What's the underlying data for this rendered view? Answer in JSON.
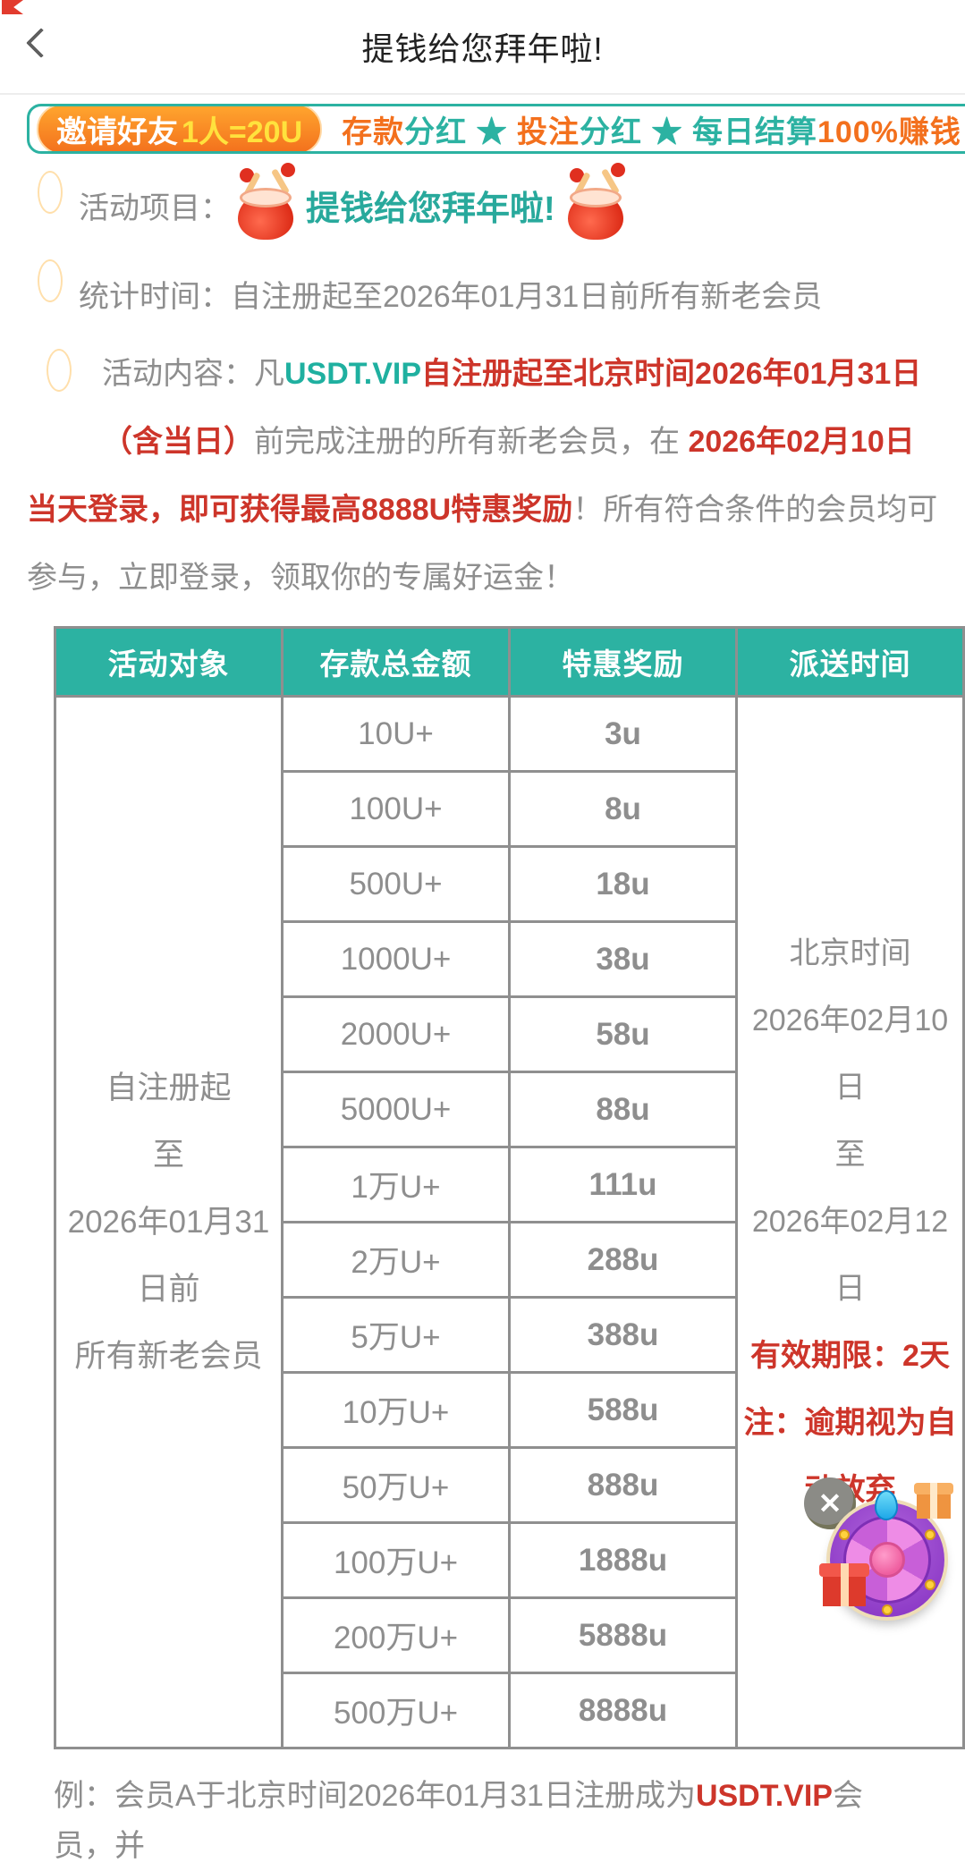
{
  "colors": {
    "teal": "#2cb2a2",
    "orange": "#f3701d",
    "red": "#cd352a",
    "reward_red": "#d2453c",
    "grey": "#8e8e8e",
    "yellow": "#ffe23d"
  },
  "header": {
    "title": "提钱给您拜年啦!"
  },
  "banner": {
    "pill_prefix": "邀请好友",
    "pill_highlight": "1人=20U",
    "segments": [
      {
        "t": "存款",
        "c": "orange"
      },
      {
        "t": "分红",
        "c": "teal"
      },
      {
        "t": " ★ ",
        "c": "teal"
      },
      {
        "t": "投注",
        "c": "orange"
      },
      {
        "t": "分红",
        "c": "teal"
      },
      {
        "t": " ★ ",
        "c": "teal"
      },
      {
        "t": "每日结算",
        "c": "teal"
      },
      {
        "t": "100%赚钱",
        "c": "orange"
      }
    ]
  },
  "rows": {
    "project_label": "活动项目：",
    "project_value": "提钱给您拜年啦!",
    "stats_label": "统计时间：",
    "stats_value": "自注册起至2026年01月31日前所有新老会员",
    "content_label": "活动内容："
  },
  "content_segments": [
    {
      "t": "凡",
      "c": "grey"
    },
    {
      "t": "USDT.VIP",
      "c": "tealb"
    },
    {
      "t": "自注册起至北京时间2026年01月31日（含当日）",
      "c": "red"
    },
    {
      "t": "前完成注册的所有新老会员，在 ",
      "c": "grey"
    },
    {
      "t": "2026年02月10日当天登录，即可获得最高8888U特惠奖励",
      "c": "red"
    },
    {
      "t": "！所有符合条件的会员均可参与，立即登录，领取你的专属好运金！",
      "c": "grey"
    }
  ],
  "table": {
    "headers": [
      "活动对象",
      "存款总金额",
      "特惠奖励",
      "派送时间"
    ],
    "target_lines": [
      "自注册起",
      "至",
      "2026年01月31",
      "日前",
      "所有新老会员"
    ],
    "rows": [
      [
        "10U+",
        "3u"
      ],
      [
        "100U+",
        "8u"
      ],
      [
        "500U+",
        "18u"
      ],
      [
        "1000U+",
        "38u"
      ],
      [
        "2000U+",
        "58u"
      ],
      [
        "5000U+",
        "88u"
      ],
      [
        "1万U+",
        "111u"
      ],
      [
        "2万U+",
        "288u"
      ],
      [
        "5万U+",
        "388u"
      ],
      [
        "10万U+",
        "588u"
      ],
      [
        "50万U+",
        "888u"
      ],
      [
        "100万U+",
        "1888u"
      ],
      [
        "200万U+",
        "5888u"
      ],
      [
        "500万U+",
        "8888u"
      ]
    ],
    "delivery_grey_lines": [
      "北京时间",
      "2026年02月10",
      "日",
      "至",
      "2026年02月12",
      "日"
    ],
    "delivery_red_lines": [
      "有效期限：2天",
      "注：逾期视为自动放弃"
    ]
  },
  "example_segments": [
    {
      "t": "例：会员A于北京时间2026年01月31日注册成为",
      "c": "grey"
    },
    {
      "t": "USDT.VIP",
      "c": "redb"
    },
    {
      "t": "会员，并",
      "c": "grey"
    }
  ],
  "floating": {
    "close_glyph": "✕"
  }
}
